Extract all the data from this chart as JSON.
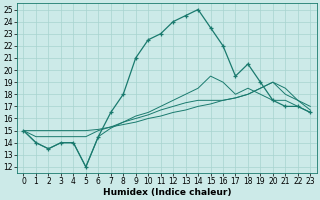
{
  "xlabel": "Humidex (Indice chaleur)",
  "bg_color": "#cceae8",
  "line_color": "#1a7a6e",
  "grid_color": "#a8d4cf",
  "xlim": [
    -0.5,
    23.5
  ],
  "ylim": [
    11.5,
    25.5
  ],
  "xticks": [
    0,
    1,
    2,
    3,
    4,
    5,
    6,
    7,
    8,
    9,
    10,
    11,
    12,
    13,
    14,
    15,
    16,
    17,
    18,
    19,
    20,
    21,
    22,
    23
  ],
  "yticks": [
    12,
    13,
    14,
    15,
    16,
    17,
    18,
    19,
    20,
    21,
    22,
    23,
    24,
    25
  ],
  "series": [
    [
      15,
      14,
      13.5,
      14,
      14,
      12,
      14.5,
      16.5,
      18,
      21,
      22.5,
      23,
      24,
      24.5,
      25,
      23.5,
      22,
      19.5,
      20.5,
      19,
      17.5,
      17,
      17,
      16.5
    ],
    [
      15,
      14,
      13.5,
      14,
      14,
      12,
      14.5,
      15.2,
      15.7,
      16.2,
      16.5,
      17,
      17.5,
      18,
      18.5,
      19.5,
      19,
      18,
      18.5,
      18,
      17.5,
      17.5,
      17,
      16.5
    ],
    [
      15,
      14.5,
      14.5,
      14.5,
      14.5,
      14.5,
      15,
      15.3,
      15.7,
      16,
      16.3,
      16.7,
      17,
      17.3,
      17.5,
      17.5,
      17.5,
      17.7,
      18,
      18.5,
      19,
      18,
      17.5,
      17
    ],
    [
      15,
      15,
      15,
      15,
      15,
      15,
      15.1,
      15.3,
      15.5,
      15.7,
      16,
      16.2,
      16.5,
      16.7,
      17,
      17.2,
      17.5,
      17.7,
      18,
      18.5,
      19,
      18.5,
      17.5,
      16.7
    ]
  ],
  "marker_series": 0,
  "tick_fontsize": 5.5,
  "xlabel_fontsize": 6.5
}
